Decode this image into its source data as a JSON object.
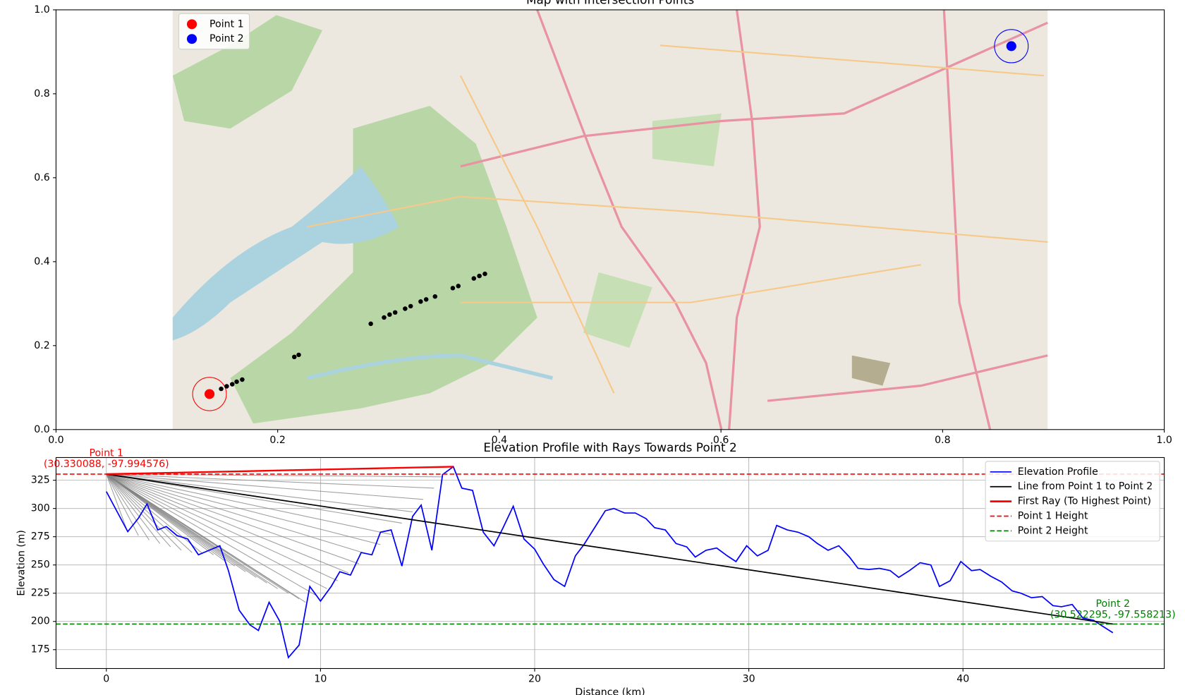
{
  "chart_data": [
    {
      "type": "scatter",
      "title": "Map with Intersection Points",
      "xlim": [
        0,
        1
      ],
      "ylim": [
        0,
        1
      ],
      "xticks": [
        {
          "value": 0,
          "label": "0.0"
        },
        0.2,
        0.4,
        0.6,
        0.8,
        {
          "value": 1,
          "label": "1.0"
        }
      ],
      "yticks": [
        {
          "value": 0,
          "label": "0.0"
        },
        0.2,
        0.4,
        0.6,
        0.8,
        {
          "value": 1,
          "label": "1.0"
        }
      ],
      "grid": false,
      "legend": "upper left",
      "series": [
        {
          "name": "Point 1",
          "color": "#ff0000",
          "x": [
            0.1385
          ],
          "y": [
            0.0847
          ]
        },
        {
          "name": "Point 2",
          "color": "#0000ff",
          "x": [
            0.862
          ],
          "y": [
            0.9135
          ]
        },
        {
          "color": "#000000",
          "x": [
            0.149,
            0.154,
            0.159,
            0.163,
            0.168,
            0.215,
            0.219,
            0.284,
            0.296,
            0.301,
            0.306,
            0.315,
            0.32,
            0.329,
            0.334,
            0.342,
            0.358,
            0.363,
            0.377,
            0.382,
            0.387
          ],
          "y": [
            0.097,
            0.103,
            0.108,
            0.114,
            0.119,
            0.173,
            0.178,
            0.252,
            0.267,
            0.274,
            0.279,
            0.288,
            0.294,
            0.305,
            0.31,
            0.317,
            0.337,
            0.342,
            0.36,
            0.366,
            0.371
          ]
        }
      ]
    },
    {
      "type": "line",
      "title": "Elevation Profile with Rays Towards Point 2",
      "x_label": "Distance (km)",
      "y_label": "Elevation (m)",
      "xlim": [
        -2.35,
        49.4
      ],
      "ylim": [
        158.3,
        345.1
      ],
      "xticks": [
        0,
        10,
        20,
        30,
        40
      ],
      "yticks": [
        175,
        200,
        225,
        250,
        275,
        300,
        325
      ],
      "grid": true,
      "legend": "upper right",
      "rays": {
        "color": "#808080",
        "x": [
          1.0,
          1.5,
          2.0,
          2.5,
          3.0,
          3.5,
          4.0,
          4.5,
          5.0,
          5.5,
          6.0,
          6.5,
          7.0,
          7.5,
          8.0,
          8.5,
          9.0,
          9.3,
          9.8,
          10.3,
          10.8,
          11.3,
          11.8,
          12.3,
          12.8,
          13.3,
          13.8,
          14.3,
          14.8,
          15.3,
          15.7
        ],
        "y": [
          279,
          276,
          272,
          269,
          266,
          263,
          261,
          260,
          259,
          254,
          249,
          244,
          239,
          234,
          229,
          225,
          220,
          217,
          223,
          229,
          236,
          243,
          251,
          259,
          268,
          277,
          287,
          297,
          308,
          318,
          328
        ]
      },
      "series": [
        {
          "name": "Elevation Profile",
          "color": "#0000ff",
          "x": [
            0,
            1.0,
            1.5,
            1.9,
            2.4,
            2.8,
            3.3,
            3.8,
            4.3,
            4.8,
            5.3,
            5.7,
            6.2,
            6.7,
            7.1,
            7.6,
            8.1,
            8.5,
            9.0,
            9.5,
            10.0,
            10.5,
            10.9,
            11.4,
            11.9,
            12.4,
            12.8,
            13.3,
            13.8,
            14.3,
            14.7,
            15.2,
            15.7,
            16.2,
            16.6,
            17.1,
            17.6,
            18.1,
            18.5,
            19.0,
            19.5,
            20.0,
            20.4,
            20.9,
            21.4,
            21.9,
            22.3,
            22.8,
            23.3,
            23.7,
            24.2,
            24.7,
            25.2,
            25.6,
            26.1,
            26.6,
            27.1,
            27.5,
            28.0,
            28.5,
            29.0,
            29.4,
            29.9,
            30.4,
            30.9,
            31.3,
            31.8,
            32.3,
            32.8,
            33.2,
            33.7,
            34.2,
            34.7,
            35.1,
            35.6,
            36.1,
            36.6,
            37.0,
            37.5,
            38.0,
            38.5,
            38.9,
            39.4,
            39.9,
            40.4,
            40.8,
            41.3,
            41.8,
            42.3,
            42.7,
            43.2,
            43.7,
            44.2,
            44.6,
            45.1,
            45.6,
            46.1,
            46.5,
            47.0
          ],
          "y": [
            315,
            279.5,
            291.5,
            304,
            281,
            284,
            276,
            273,
            259,
            263,
            267,
            245,
            210,
            197,
            192,
            217,
            200,
            168,
            179,
            231,
            218,
            231,
            244,
            241,
            261,
            259,
            279,
            281,
            249,
            293,
            303,
            263,
            330,
            337,
            318,
            316,
            279,
            267,
            282,
            302,
            273,
            264,
            251,
            237,
            231,
            258,
            268,
            283,
            298,
            300,
            296,
            296,
            291,
            283,
            281,
            269,
            266,
            257,
            263,
            265,
            258,
            253,
            267,
            258,
            263,
            285,
            281,
            279,
            275,
            269,
            263,
            267,
            257,
            247,
            246,
            247,
            245,
            239,
            245,
            252,
            250,
            231,
            236,
            253,
            245,
            246,
            240,
            235,
            227,
            225,
            221,
            222,
            214,
            213,
            215,
            203,
            201,
            196,
            190
          ]
        },
        {
          "name": "Line from Point 1 to Point 2",
          "color": "#000000",
          "x": [
            0,
            47.0
          ],
          "y": [
            330.4,
            197.7
          ]
        },
        {
          "name": "First Ray (To Highest Point)",
          "color": "#ff0000",
          "x": [
            0,
            16.2
          ],
          "y": [
            330.4,
            337
          ]
        }
      ],
      "hlines": [
        {
          "name": "Point 1 Height",
          "color": "#ff0000",
          "value": 330.4
        },
        {
          "name": "Point 2 Height",
          "color": "#008000",
          "value": 197.7
        }
      ],
      "annotations": [
        {
          "lines": [
            "Point 1",
            "(30.330088, -97.994576)"
          ],
          "color": "#ff0000"
        },
        {
          "lines": [
            "Point 2",
            "(30.522295, -97.558213)"
          ],
          "color": "#008000"
        }
      ]
    }
  ]
}
